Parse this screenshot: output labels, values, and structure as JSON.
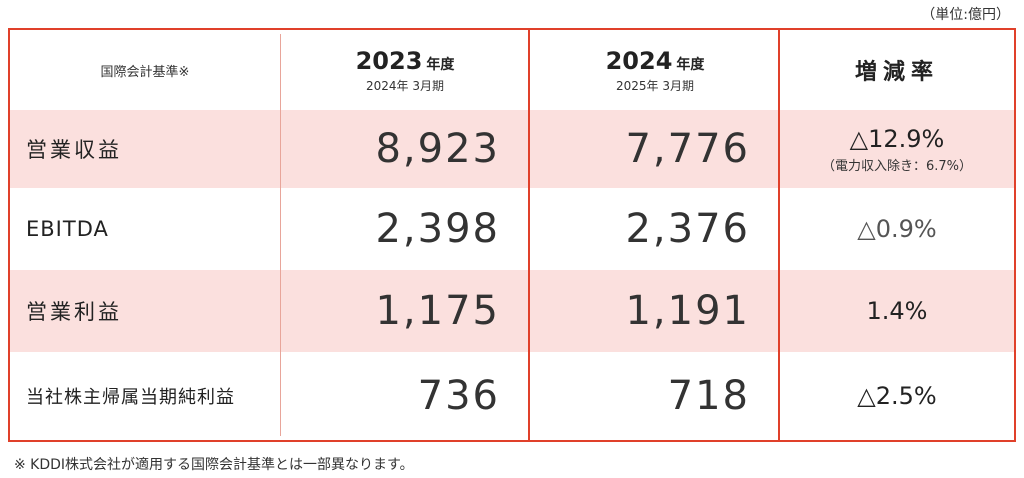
{
  "unit_label": "（単位:億円）",
  "header": {
    "standard": "国際会計基準※",
    "col1": {
      "year": "2023",
      "suffix": "年度",
      "period": "2024年 3月期"
    },
    "col2": {
      "year": "2024",
      "suffix": "年度",
      "period": "2025年 3月期"
    },
    "col3": "増減率"
  },
  "rows": [
    {
      "label": "営業収益",
      "v2023": "8,923",
      "v2024": "7,776",
      "change": "△12.9%",
      "note": "（電力収入除き：6.7%）"
    },
    {
      "label": "EBITDA",
      "v2023": "2,398",
      "v2024": "2,376",
      "change": "△0.9%"
    },
    {
      "label": "営業利益",
      "v2023": "1,175",
      "v2024": "1,191",
      "change": "1.4%"
    },
    {
      "label": "当社株主帰属当期純利益",
      "v2023": "736",
      "v2024": "718",
      "change": "△2.5%"
    }
  ],
  "footnote": "※ KDDI株式会社が適用する国際会計基準とは一部異なります。"
}
